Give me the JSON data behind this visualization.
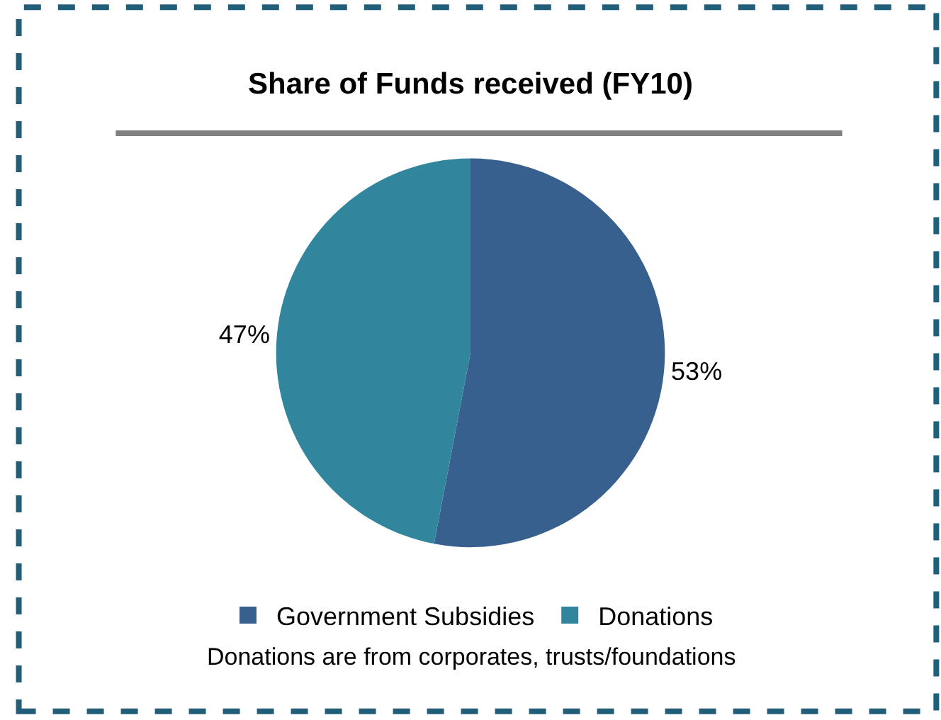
{
  "chart_data": {
    "type": "pie",
    "title": "Share of Funds received (FY10)",
    "categories": [
      "Government Subsidies",
      "Donations"
    ],
    "values": [
      53,
      47
    ],
    "value_labels": [
      "53%",
      "47%"
    ],
    "colors": [
      "#37608f",
      "#31869e"
    ],
    "legend": "bottom",
    "annotations": [
      "Donations are from corporates, trusts/foundations"
    ]
  }
}
